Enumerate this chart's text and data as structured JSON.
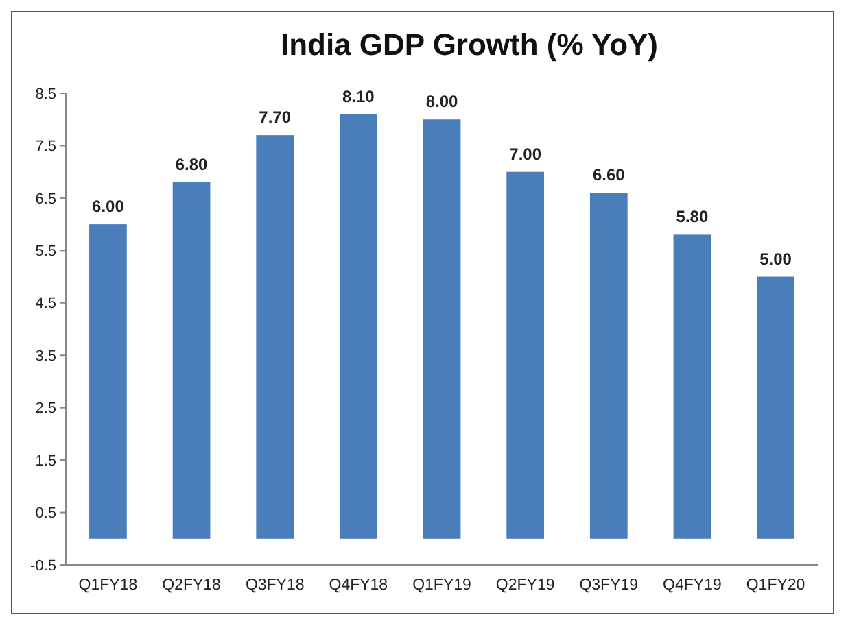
{
  "chart_data": {
    "type": "bar",
    "title": "India GDP Growth (% YoY)",
    "categories": [
      "Q1FY18",
      "Q2FY18",
      "Q3FY18",
      "Q4FY18",
      "Q1FY19",
      "Q2FY19",
      "Q3FY19",
      "Q4FY19",
      "Q1FY20"
    ],
    "values": [
      6.0,
      6.8,
      7.7,
      8.1,
      8.0,
      7.0,
      6.6,
      5.8,
      5.0
    ],
    "value_labels": [
      "6.00",
      "6.80",
      "7.70",
      "8.10",
      "8.00",
      "7.00",
      "6.60",
      "5.80",
      "5.00"
    ],
    "color": "#4a7ebb",
    "ylim": [
      -0.5,
      8.5
    ],
    "yticks": [
      -0.5,
      0.5,
      1.5,
      2.5,
      3.5,
      4.5,
      5.5,
      6.5,
      7.5,
      8.5
    ],
    "grid": false
  }
}
